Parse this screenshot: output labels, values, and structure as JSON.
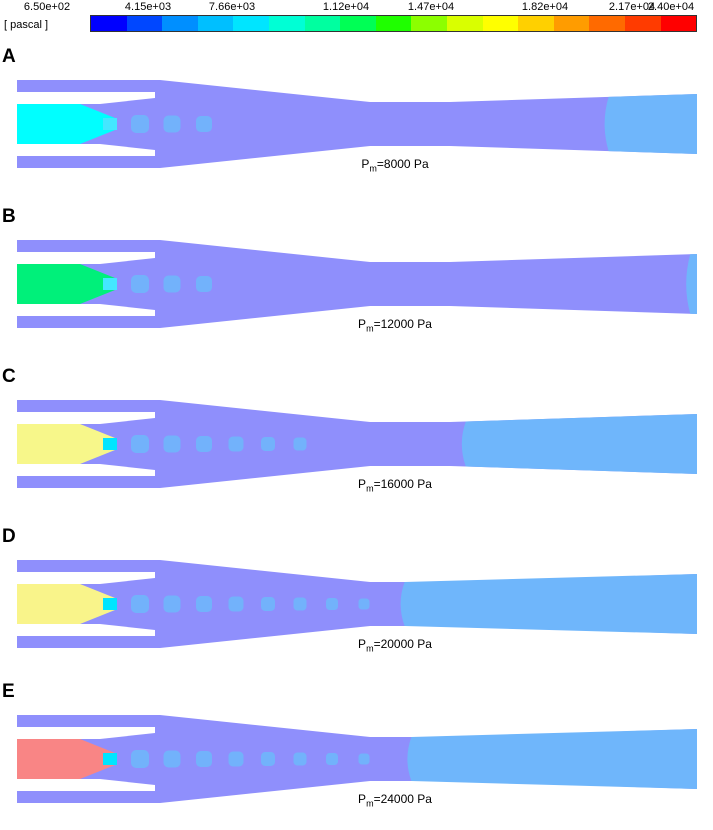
{
  "colorbar": {
    "unit_label": "[ pascal ]",
    "tick_labels": [
      "6.50e+02",
      "4.15e+03",
      "7.66e+03",
      "1.12e+04",
      "1.47e+04",
      "1.82e+04",
      "2.17e+04",
      "2.40e+04"
    ],
    "colors": [
      "#0000ff",
      "#0047ff",
      "#008fff",
      "#00bfff",
      "#00e5ff",
      "#00ffd5",
      "#00ffa0",
      "#00ff55",
      "#1fff00",
      "#8cff00",
      "#d9ff00",
      "#ffff00",
      "#ffd000",
      "#ff9c00",
      "#ff6a00",
      "#ff3b00",
      "#ff0000"
    ]
  },
  "panels": [
    {
      "letter": "A",
      "label_main": "P",
      "label_sub": "m",
      "label_rest": "=8000  Pa",
      "inlet_color": "#00ffff",
      "throat_color": "#44e7ff",
      "body_color": "#8f8ffc",
      "outlet_color": "#6fb6fb",
      "shock_cells": 3,
      "outlet_start_fraction": 0.87
    },
    {
      "letter": "B",
      "label_main": "P",
      "label_sub": "m",
      "label_rest": "=12000  Pa",
      "inlet_color": "#00f07a",
      "throat_color": "#44e7ff",
      "body_color": "#8f8ffc",
      "outlet_color": "#6fb6fb",
      "shock_cells": 3,
      "outlet_start_fraction": 0.99
    },
    {
      "letter": "C",
      "label_main": "P",
      "label_sub": "m",
      "label_rest": "=16000  Pa",
      "inlet_color": "#f7f78a",
      "throat_color": "#00e5ff",
      "body_color": "#8f8ffc",
      "outlet_color": "#6fb6fb",
      "shock_cells": 6,
      "outlet_start_fraction": 0.66
    },
    {
      "letter": "D",
      "label_main": "P",
      "label_sub": "m",
      "label_rest": "=20000  Pa",
      "inlet_color": "#f9f48a",
      "throat_color": "#00e5ff",
      "body_color": "#8f8ffc",
      "outlet_color": "#6fb6fb",
      "shock_cells": 8,
      "outlet_start_fraction": 0.57
    },
    {
      "letter": "E",
      "label_main": "P",
      "label_sub": "m",
      "label_rest": "=24000  Pa",
      "inlet_color": "#f98585",
      "throat_color": "#00e5ff",
      "body_color": "#8f8ffc",
      "outlet_color": "#6fb6fb",
      "shock_cells": 8,
      "outlet_start_fraction": 0.58
    }
  ]
}
